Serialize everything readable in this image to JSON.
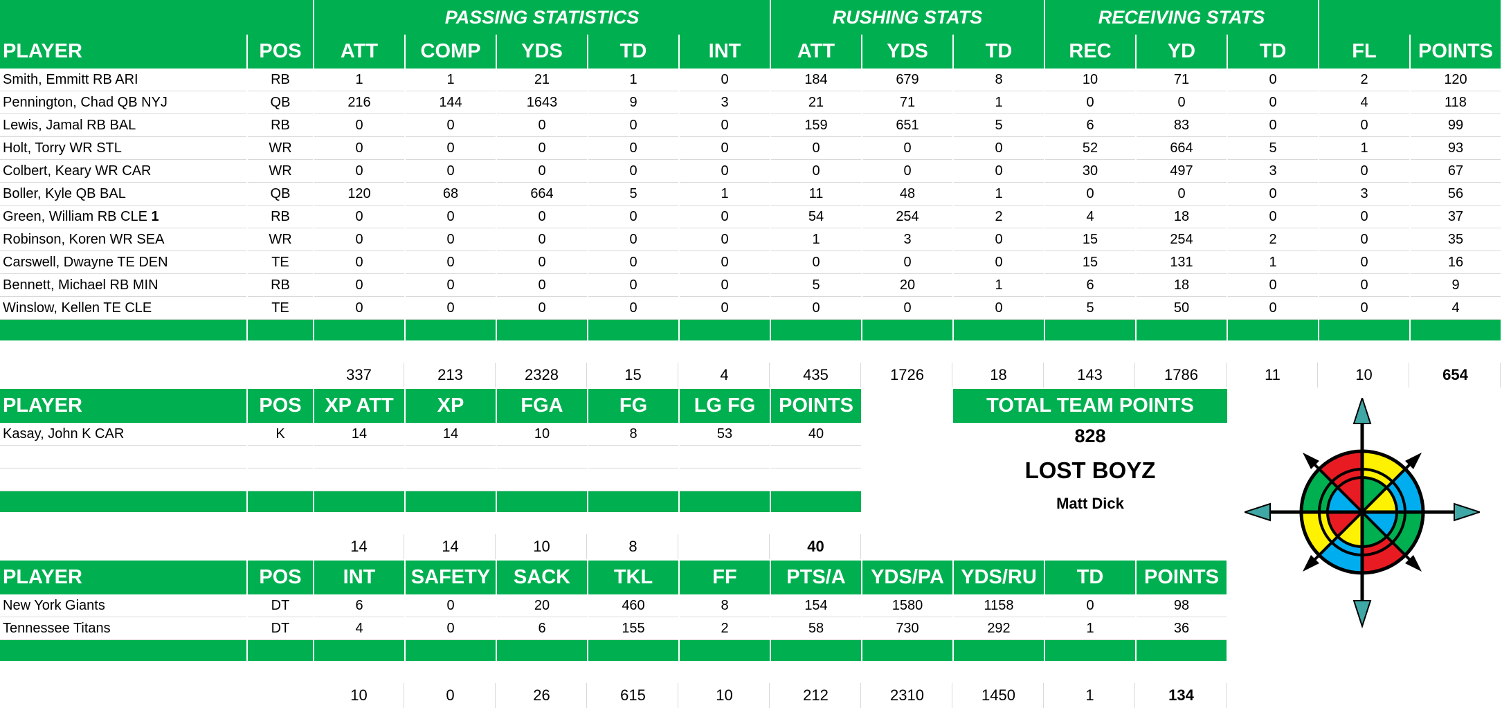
{
  "offense": {
    "groups": {
      "passing": "PASSING STATISTICS",
      "rushing": "RUSHING STATS",
      "receiving": "RECEIVING STATS"
    },
    "headers": [
      "PLAYER",
      "POS",
      "ATT",
      "COMP",
      "YDS",
      "TD",
      "INT",
      "ATT",
      "YDS",
      "TD",
      "REC",
      "YD",
      "TD",
      "FL",
      "POINTS"
    ],
    "rows": [
      {
        "name": "Smith, Emmitt RB ARI",
        "name_suffix": "",
        "vals": [
          "RB",
          "1",
          "1",
          "21",
          "1",
          "0",
          "184",
          "679",
          "8",
          "10",
          "71",
          "0",
          "2",
          "120"
        ]
      },
      {
        "name": "Pennington, Chad QB NYJ",
        "name_suffix": "",
        "vals": [
          "QB",
          "216",
          "144",
          "1643",
          "9",
          "3",
          "21",
          "71",
          "1",
          "0",
          "0",
          "0",
          "4",
          "118"
        ]
      },
      {
        "name": "Lewis, Jamal RB BAL",
        "name_suffix": "",
        "vals": [
          "RB",
          "0",
          "0",
          "0",
          "0",
          "0",
          "159",
          "651",
          "5",
          "6",
          "83",
          "0",
          "0",
          "99"
        ]
      },
      {
        "name": "Holt, Torry WR STL",
        "name_suffix": "",
        "vals": [
          "WR",
          "0",
          "0",
          "0",
          "0",
          "0",
          "0",
          "0",
          "0",
          "52",
          "664",
          "5",
          "1",
          "93"
        ]
      },
      {
        "name": "Colbert, Keary WR CAR",
        "name_suffix": "",
        "vals": [
          "WR",
          "0",
          "0",
          "0",
          "0",
          "0",
          "0",
          "0",
          "0",
          "30",
          "497",
          "3",
          "0",
          "67"
        ]
      },
      {
        "name": "Boller, Kyle QB BAL",
        "name_suffix": "",
        "vals": [
          "QB",
          "120",
          "68",
          "664",
          "5",
          "1",
          "11",
          "48",
          "1",
          "0",
          "0",
          "0",
          "3",
          "56"
        ]
      },
      {
        "name": "Green, William RB CLE ",
        "name_suffix": "1",
        "vals": [
          "RB",
          "0",
          "0",
          "0",
          "0",
          "0",
          "54",
          "254",
          "2",
          "4",
          "18",
          "0",
          "0",
          "37"
        ]
      },
      {
        "name": "Robinson, Koren WR SEA",
        "name_suffix": "",
        "vals": [
          "WR",
          "0",
          "0",
          "0",
          "0",
          "0",
          "1",
          "3",
          "0",
          "15",
          "254",
          "2",
          "0",
          "35"
        ]
      },
      {
        "name": "Carswell, Dwayne TE DEN",
        "name_suffix": "",
        "vals": [
          "TE",
          "0",
          "0",
          "0",
          "0",
          "0",
          "0",
          "0",
          "0",
          "15",
          "131",
          "1",
          "0",
          "16"
        ]
      },
      {
        "name": "Bennett, Michael RB MIN",
        "name_suffix": "",
        "vals": [
          "RB",
          "0",
          "0",
          "0",
          "0",
          "0",
          "5",
          "20",
          "1",
          "6",
          "18",
          "0",
          "0",
          "9"
        ]
      },
      {
        "name": "Winslow, Kellen TE CLE",
        "name_suffix": "",
        "vals": [
          "TE",
          "0",
          "0",
          "0",
          "0",
          "0",
          "0",
          "0",
          "0",
          "5",
          "50",
          "0",
          "0",
          "4"
        ]
      }
    ],
    "totals": [
      "",
      "",
      "337",
      "213",
      "2328",
      "15",
      "4",
      "435",
      "1726",
      "18",
      "143",
      "1786",
      "11",
      "10",
      "654"
    ]
  },
  "kickers": {
    "headers": [
      "PLAYER",
      "POS",
      "XP ATT",
      "XP",
      "FGA",
      "FG",
      "LG FG",
      "POINTS"
    ],
    "rows": [
      {
        "name": "Kasay, John K CAR",
        "vals": [
          "K",
          "14",
          "14",
          "10",
          "8",
          "53",
          "40"
        ]
      }
    ],
    "totals": [
      "",
      "",
      "14",
      "14",
      "10",
      "8",
      "",
      "40"
    ]
  },
  "defense": {
    "headers": [
      "PLAYER",
      "POS",
      "INT",
      "SAFETY",
      "SACK",
      "TKL",
      "FF",
      "PTS/A",
      "YDS/PA",
      "YDS/RU",
      "TD",
      "POINTS"
    ],
    "rows": [
      {
        "name": "New York Giants",
        "vals": [
          "DT",
          "6",
          "0",
          "20",
          "460",
          "8",
          "154",
          "1580",
          "1158",
          "0",
          "98"
        ]
      },
      {
        "name": "Tennessee Titans",
        "vals": [
          "DT",
          "4",
          "0",
          "6",
          "155",
          "2",
          "58",
          "730",
          "292",
          "1",
          "36"
        ]
      }
    ],
    "totals": [
      "",
      "",
      "10",
      "0",
      "26",
      "615",
      "10",
      "212",
      "2310",
      "1450",
      "1",
      "134"
    ]
  },
  "summary": {
    "header": "TOTAL TEAM POINTS",
    "points": "828",
    "team_name": "LOST BOYZ",
    "owner": "Matt Dick"
  },
  "colors": {
    "header_green": "#00b050",
    "grid_line": "#d9d9d9"
  },
  "logo": {
    "icon": "compass-rose-icon",
    "ring_colors": [
      "#e81b23",
      "#fff200",
      "#00b050",
      "#00aeef"
    ]
  }
}
